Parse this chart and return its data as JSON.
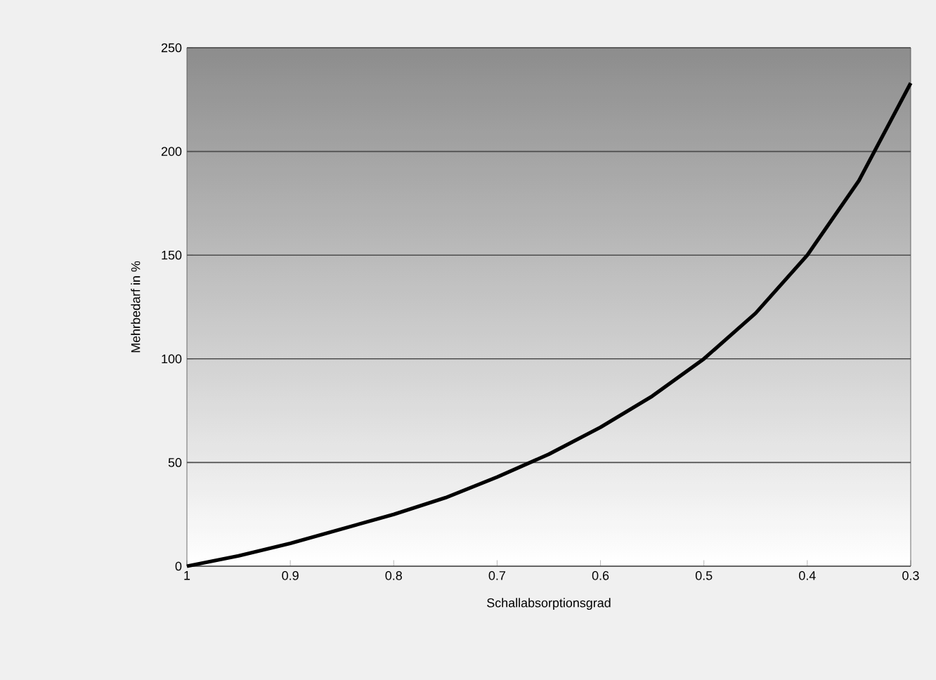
{
  "chart_data": {
    "type": "line",
    "xlabel": "Schallabsorptionsgrad",
    "ylabel": "Mehrbedarf in %",
    "x": [
      1,
      0.95,
      0.9,
      0.85,
      0.8,
      0.75,
      0.7,
      0.65,
      0.6,
      0.55,
      0.5,
      0.45,
      0.4,
      0.35,
      0.3
    ],
    "series": [
      {
        "color": "#000000",
        "values": [
          0,
          5,
          11,
          18,
          25,
          33,
          43,
          54,
          67,
          82,
          100,
          122,
          150,
          186,
          233
        ]
      }
    ],
    "xlim": [
      1,
      0.3
    ],
    "ylim": [
      0,
      250
    ],
    "xticks": [
      1,
      0.9,
      0.8,
      0.7,
      0.6,
      0.5,
      0.4,
      0.3
    ],
    "yticks": [
      0,
      50,
      100,
      150,
      200,
      250
    ],
    "grid": "y",
    "line_style": "solid",
    "marker": "none"
  }
}
